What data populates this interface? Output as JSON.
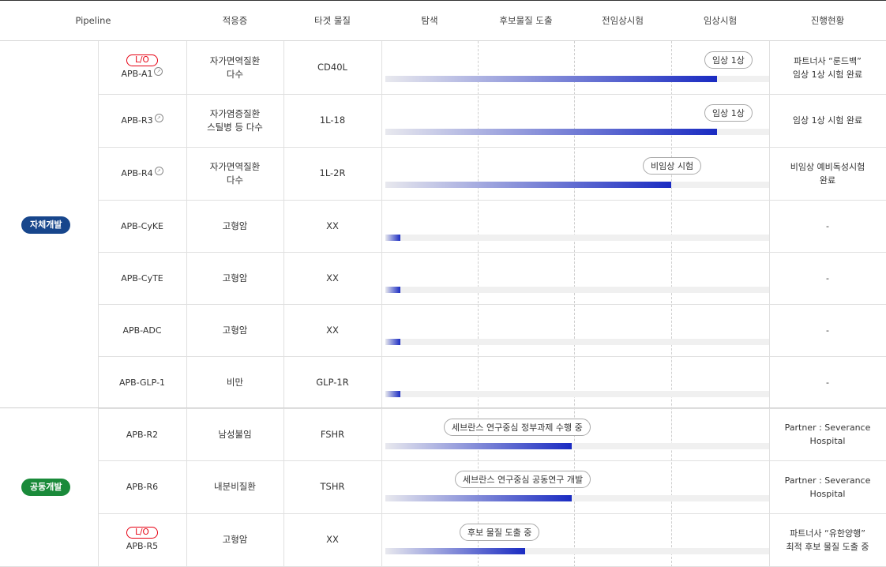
{
  "header": {
    "pipeline": "Pipeline",
    "indication": "적응증",
    "target": "타겟 물질",
    "stages": [
      "탐색",
      "후보물질 도출",
      "전임상시험",
      "임상시험"
    ],
    "status": "진행현황"
  },
  "groups": [
    {
      "label": "자체개발",
      "color": "#17468c"
    },
    {
      "label": "공동개발",
      "color": "#1a8a3a"
    }
  ],
  "lo_label": "L/O",
  "rows": [
    {
      "name": "APB-A1",
      "lo": true,
      "ext": true,
      "indication": [
        "자가면역질환",
        "다수"
      ],
      "target": "CD40L",
      "progress_pct": 86.5,
      "bubble": "임상 1상",
      "status": [
        "파트너사 “룬드백”",
        "임상 1상 시험 완료"
      ]
    },
    {
      "name": "APB-R3",
      "lo": false,
      "ext": true,
      "indication": [
        "자가염증질환",
        "스틸병 등 다수"
      ],
      "target": "1L-18",
      "progress_pct": 86.5,
      "bubble": "임상 1상",
      "status": [
        "임상 1상 시험 완료"
      ]
    },
    {
      "name": "APB-R4",
      "lo": false,
      "ext": true,
      "indication": [
        "자가면역질환",
        "다수"
      ],
      "target": "1L-2R",
      "progress_pct": 74.5,
      "bubble": "비임상 시험",
      "status": [
        "비임상 예비독성시험",
        "완료"
      ]
    },
    {
      "name": "APB-CyKE",
      "lo": false,
      "ext": false,
      "indication": [
        "고형암"
      ],
      "target": "XX",
      "progress_pct": 4,
      "bubble": "",
      "status": [
        "-"
      ]
    },
    {
      "name": "APB-CyTE",
      "lo": false,
      "ext": false,
      "indication": [
        "고형암"
      ],
      "target": "XX",
      "progress_pct": 4,
      "bubble": "",
      "status": [
        "-"
      ]
    },
    {
      "name": "APB-ADC",
      "lo": false,
      "ext": false,
      "indication": [
        "고형암"
      ],
      "target": "XX",
      "progress_pct": 4,
      "bubble": "",
      "status": [
        "-"
      ]
    },
    {
      "name": "APB-GLP-1",
      "lo": false,
      "ext": false,
      "indication": [
        "비만"
      ],
      "target": "GLP-1R",
      "progress_pct": 4,
      "bubble": "",
      "status": [
        "-"
      ]
    },
    {
      "name": "APB-R2",
      "lo": false,
      "ext": false,
      "indication": [
        "남성불임"
      ],
      "target": "FSHR",
      "progress_pct": 48.5,
      "bubble": "세브란스 연구중심 정부과제 수행 중",
      "status": [
        "Partner : Severance",
        "Hospital"
      ]
    },
    {
      "name": "APB-R6",
      "lo": false,
      "ext": false,
      "indication": [
        "내분비질환"
      ],
      "target": "TSHR",
      "progress_pct": 48.5,
      "bubble": "세브란스 연구중심 공동연구 개발",
      "status": [
        "Partner : Severance",
        "Hospital"
      ]
    },
    {
      "name": "APB-R5",
      "lo": true,
      "ext": false,
      "indication": [
        "고형암"
      ],
      "target": "XX",
      "progress_pct": 36.5,
      "bubble": "후보 물질 도출 중",
      "status": [
        "파트너사 “유한양행”",
        "최적 후보 물질 도출 중"
      ]
    }
  ]
}
